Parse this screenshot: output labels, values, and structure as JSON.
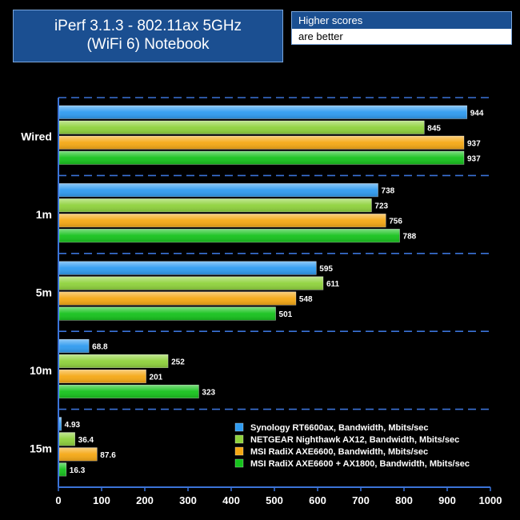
{
  "header": {
    "title_line1": "iPerf 3.1.3 - 802.11ax 5GHz",
    "title_line2": "(WiFi 6) Notebook",
    "note_line1": "Higher scores",
    "note_line2": "are better"
  },
  "chart_data": {
    "type": "bar",
    "orientation": "horizontal",
    "title": "iPerf 3.1.3 - 802.11ax 5GHz (WiFi 6) Notebook",
    "xlabel": "",
    "ylabel": "",
    "xlim": [
      0,
      1000
    ],
    "ticks": [
      "0",
      "100",
      "200",
      "300",
      "400",
      "500",
      "600",
      "700",
      "800",
      "900",
      "1000"
    ],
    "categories": [
      "Wired",
      "1m",
      "5m",
      "10m",
      "15m"
    ],
    "series": [
      {
        "name": "Synology RT6600ax, Bandwidth, Mbits/sec",
        "color": "#2f9bf0",
        "values": [
          944,
          738,
          595,
          68.8,
          4.93
        ],
        "labels": [
          "944",
          "738",
          "595",
          "68.8",
          "4.93"
        ]
      },
      {
        "name": "NETGEAR Nighthawk AX12, Bandwidth, Mbits/sec",
        "color": "#8fd23c",
        "values": [
          845,
          723,
          611,
          252,
          36.4
        ],
        "labels": [
          "845",
          "723",
          "611",
          "252",
          "36.4"
        ]
      },
      {
        "name": "MSI RadiX AXE6600, Bandwidth, Mbits/sec",
        "color": "#f5a814",
        "values": [
          937,
          756,
          548,
          201,
          87.6
        ],
        "labels": [
          "937",
          "756",
          "548",
          "201",
          "87.6"
        ]
      },
      {
        "name": "MSI RadiX AXE6600 + AX1800, Bandwidth, Mbits/sec",
        "color": "#16c21c",
        "values": [
          937,
          788,
          501,
          323,
          16.3
        ],
        "labels": [
          "937",
          "788",
          "501",
          "323",
          "16.3"
        ]
      }
    ],
    "grid": true,
    "legend_position": "bottom-right"
  }
}
